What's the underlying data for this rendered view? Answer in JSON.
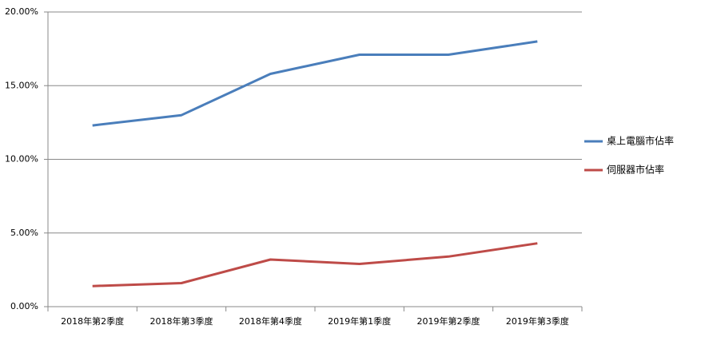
{
  "chart_data": {
    "type": "line",
    "categories": [
      "2018年第2季度",
      "2018年第3季度",
      "2018年第4季度",
      "2019年第1季度",
      "2019年第2季度",
      "2019年第3季度"
    ],
    "series": [
      {
        "name": "桌上電腦市佔率",
        "color": "#4a7ebb",
        "values": [
          12.3,
          13.0,
          15.8,
          17.1,
          17.1,
          18.0
        ]
      },
      {
        "name": "伺服器市佔率",
        "color": "#be4b48",
        "values": [
          1.4,
          1.6,
          3.2,
          2.9,
          3.4,
          4.3
        ]
      }
    ],
    "ylim": [
      0,
      20
    ],
    "yticks": [
      {
        "value": 0,
        "label": "0.00%"
      },
      {
        "value": 5,
        "label": "5.00%"
      },
      {
        "value": 10,
        "label": "10.00%"
      },
      {
        "value": 15,
        "label": "15.00%"
      },
      {
        "value": 20,
        "label": "20.00%"
      }
    ],
    "grid": true,
    "legend": "right"
  }
}
